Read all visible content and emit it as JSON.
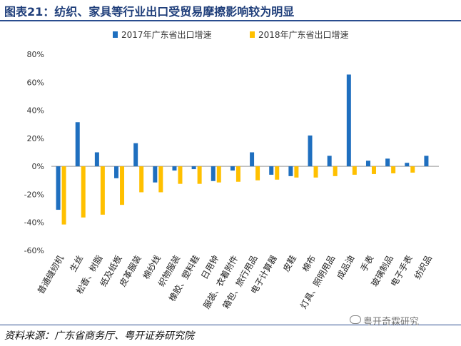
{
  "title": "图表21：纺织、家具等行业出口受贸易摩擦影响较为明显",
  "source": "资料来源：广东省商务厅、粤开证券研究院",
  "watermark": "粤开奇霖研究",
  "colors": {
    "s2017": "#1f6fbf",
    "s2018": "#ffc000",
    "accent": "#2a4d8f"
  },
  "chart_data": {
    "type": "bar",
    "categories": [
      "普通缝纫机",
      "生丝",
      "松香、树脂",
      "纸及纸板",
      "皮革服装",
      "棉纱线",
      "织物服装",
      "橡胶、塑料鞋",
      "日用钟",
      "服装、衣着附件",
      "箱包、旅行用品",
      "电子计算器",
      "皮鞋",
      "棉布",
      "灯具、照明用品",
      "成品油",
      "手表",
      "玻璃制品",
      "电子手表",
      "纺织品"
    ],
    "series": [
      {
        "name": "2017年广东省出口增速",
        "values": [
          -31,
          31.5,
          10,
          -8.5,
          16.5,
          -11.5,
          -3,
          -2,
          -10.5,
          -3,
          10,
          -6,
          -7,
          22,
          7.5,
          65.5,
          4,
          5.5,
          2.5,
          7.5
        ]
      },
      {
        "name": "2018年广东省出口增速",
        "values": [
          -41.5,
          -36.5,
          -34.5,
          -27.5,
          -18.5,
          -18.5,
          -12.5,
          -12.5,
          -11.5,
          -11,
          -10,
          -9.5,
          -8,
          -8,
          -7,
          -6,
          -5.5,
          -5,
          -4.5,
          null
        ]
      }
    ],
    "ylim": [
      -60,
      80
    ],
    "yticks": [
      -60,
      -40,
      -20,
      0,
      20,
      40,
      60,
      80
    ],
    "ytick_labels": [
      "-60%",
      "-40%",
      "-20%",
      "0%",
      "20%",
      "40%",
      "60%",
      "80%"
    ],
    "legend_position": "top",
    "grid": false
  }
}
